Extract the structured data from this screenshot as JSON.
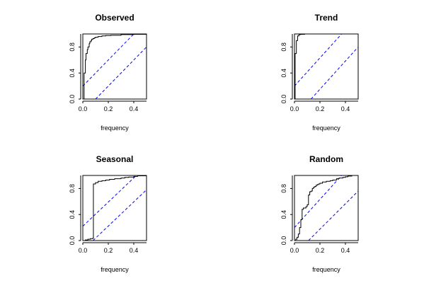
{
  "chart_data": [
    {
      "type": "line",
      "title": "Observed",
      "xlabel": "frequency",
      "ylabel": "",
      "xlim": [
        0,
        0.5
      ],
      "ylim": [
        0,
        1
      ],
      "x_ticks": [
        0.0,
        0.2,
        0.4
      ],
      "x_tick_labels": [
        "0.0",
        "0.2",
        "0.4"
      ],
      "y_ticks": [
        0.0,
        0.4,
        0.8
      ],
      "y_tick_labels": [
        "0.0",
        "0.4",
        "0.8"
      ],
      "grid": false,
      "series": [
        {
          "style": "step",
          "color": "#000000",
          "x": [
            0.0,
            0.005,
            0.01,
            0.015,
            0.02,
            0.025,
            0.03,
            0.035,
            0.04,
            0.045,
            0.05,
            0.055,
            0.06,
            0.065,
            0.07,
            0.08,
            0.09,
            0.1,
            0.12,
            0.15,
            0.18,
            0.22,
            0.3,
            0.4,
            0.5
          ],
          "y": [
            0.0,
            0.0,
            0.4,
            0.4,
            0.6,
            0.7,
            0.7,
            0.76,
            0.8,
            0.8,
            0.85,
            0.88,
            0.88,
            0.9,
            0.92,
            0.93,
            0.94,
            0.95,
            0.96,
            0.97,
            0.975,
            0.98,
            0.99,
            0.995,
            1.0
          ]
        }
      ],
      "bands": [
        {
          "style": "dashed",
          "color": "#0000ff",
          "x": [
            0.0,
            0.4
          ],
          "y": [
            0.2,
            1.0
          ]
        },
        {
          "style": "dashed",
          "color": "#0000ff",
          "x": [
            0.1,
            0.5
          ],
          "y": [
            0.0,
            0.8
          ]
        }
      ]
    },
    {
      "type": "line",
      "title": "Trend",
      "xlabel": "frequency",
      "ylabel": "",
      "xlim": [
        0,
        0.5
      ],
      "ylim": [
        0,
        1
      ],
      "x_ticks": [
        0.0,
        0.2,
        0.4
      ],
      "x_tick_labels": [
        "0.0",
        "0.2",
        "0.4"
      ],
      "y_ticks": [
        0.0,
        0.4,
        0.8
      ],
      "y_tick_labels": [
        "0.0",
        "0.4",
        "0.8"
      ],
      "grid": false,
      "series": [
        {
          "style": "step",
          "color": "#000000",
          "x": [
            0.0,
            0.005,
            0.015,
            0.025,
            0.035,
            0.05,
            0.08,
            0.5
          ],
          "y": [
            0.0,
            0.7,
            0.9,
            0.97,
            0.99,
            0.995,
            1.0,
            1.0
          ]
        }
      ],
      "bands": [
        {
          "style": "dashed",
          "color": "#0000ff",
          "x": [
            0.0,
            0.37
          ],
          "y": [
            0.2,
            1.0
          ]
        },
        {
          "style": "dashed",
          "color": "#0000ff",
          "x": [
            0.13,
            0.5
          ],
          "y": [
            0.0,
            0.8
          ]
        }
      ]
    },
    {
      "type": "line",
      "title": "Seasonal",
      "xlabel": "frequency",
      "ylabel": "",
      "xlim": [
        0,
        0.5
      ],
      "ylim": [
        0,
        1
      ],
      "x_ticks": [
        0.0,
        0.2,
        0.4
      ],
      "x_tick_labels": [
        "0.0",
        "0.2",
        "0.4"
      ],
      "y_ticks": [
        0.0,
        0.4,
        0.8
      ],
      "y_tick_labels": [
        "0.0",
        "0.4",
        "0.8"
      ],
      "grid": false,
      "series": [
        {
          "style": "step",
          "color": "#000000",
          "x": [
            0.0,
            0.02,
            0.04,
            0.06,
            0.08,
            0.083,
            0.1,
            0.12,
            0.15,
            0.18,
            0.21,
            0.25,
            0.3,
            0.33,
            0.36,
            0.4,
            0.43,
            0.5
          ],
          "y": [
            0.0,
            0.01,
            0.02,
            0.03,
            0.04,
            0.87,
            0.89,
            0.91,
            0.92,
            0.93,
            0.94,
            0.95,
            0.96,
            0.97,
            0.975,
            0.985,
            0.995,
            1.0
          ]
        }
      ],
      "bands": [
        {
          "style": "dashed",
          "color": "#0000ff",
          "x": [
            0.0,
            0.42
          ],
          "y": [
            0.22,
            1.0
          ]
        },
        {
          "style": "dashed",
          "color": "#0000ff",
          "x": [
            0.08,
            0.5
          ],
          "y": [
            0.0,
            0.78
          ]
        }
      ]
    },
    {
      "type": "line",
      "title": "Random",
      "xlabel": "frequency",
      "ylabel": "",
      "xlim": [
        0,
        0.5
      ],
      "ylim": [
        0,
        1
      ],
      "x_ticks": [
        0.0,
        0.2,
        0.4
      ],
      "x_tick_labels": [
        "0.0",
        "0.2",
        "0.4"
      ],
      "y_ticks": [
        0.0,
        0.4,
        0.8
      ],
      "y_tick_labels": [
        "0.0",
        "0.4",
        "0.8"
      ],
      "grid": false,
      "series": [
        {
          "style": "step",
          "color": "#000000",
          "x": [
            0.0,
            0.01,
            0.02,
            0.03,
            0.04,
            0.05,
            0.06,
            0.07,
            0.09,
            0.1,
            0.11,
            0.12,
            0.13,
            0.14,
            0.15,
            0.16,
            0.17,
            0.18,
            0.19,
            0.2,
            0.22,
            0.25,
            0.28,
            0.3,
            0.33,
            0.35,
            0.38,
            0.4,
            0.42,
            0.45,
            0.5
          ],
          "y": [
            0.0,
            0.02,
            0.05,
            0.1,
            0.2,
            0.32,
            0.48,
            0.5,
            0.52,
            0.55,
            0.7,
            0.75,
            0.76,
            0.8,
            0.82,
            0.83,
            0.85,
            0.86,
            0.87,
            0.88,
            0.9,
            0.91,
            0.92,
            0.93,
            0.95,
            0.96,
            0.97,
            0.98,
            0.99,
            1.0,
            1.0
          ]
        }
      ],
      "bands": [
        {
          "style": "dashed",
          "color": "#0000ff",
          "x": [
            0.0,
            0.37
          ],
          "y": [
            0.2,
            1.0
          ]
        },
        {
          "style": "dashed",
          "color": "#0000ff",
          "x": [
            0.11,
            0.5
          ],
          "y": [
            0.0,
            0.76
          ]
        }
      ]
    }
  ]
}
